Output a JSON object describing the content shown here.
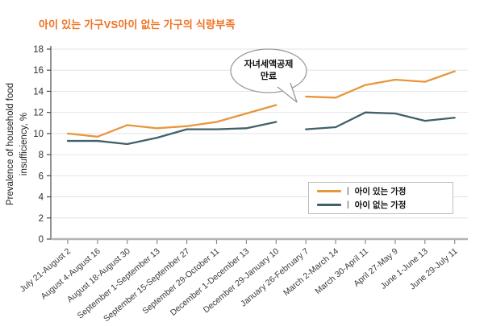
{
  "title": "아이 있는 가구VS아이 없는 가구의 식량부족",
  "title_color": "#EF7222",
  "chart_data": {
    "type": "line",
    "title": "아이 있는 가구VS아이 없는 가구의 식량부족",
    "xlabel": "",
    "ylabel": "Prevalence of household food\ninsufficiency, %",
    "ylim": [
      0,
      18
    ],
    "ytick_step": 2,
    "grid": true,
    "legend_position": "inside lower right",
    "legend_divider": "|",
    "categories": [
      "July 21-August 2",
      "August 4-August 16",
      "August 18-August 30",
      "September 1-September 13",
      "September 15-September 27",
      "September 29-October 11",
      "December 1-December 13",
      "December 29-January 10",
      "January 26-February 7",
      "March 2-March 14",
      "March 30-April 11",
      "April 27-May 9",
      "June 1-June 13",
      "June 29-July 11"
    ],
    "gap_after_index": 7,
    "series": [
      {
        "name": "아이 있는 가정",
        "color": "#E8963C",
        "values": [
          10.0,
          9.7,
          10.8,
          10.5,
          10.7,
          11.1,
          11.9,
          12.7,
          13.5,
          13.4,
          14.6,
          15.1,
          14.9,
          15.9
        ]
      },
      {
        "name": "아이 없는 가정",
        "color": "#41606B",
        "values": [
          9.3,
          9.3,
          9.0,
          9.6,
          10.4,
          10.4,
          10.5,
          11.1,
          10.4,
          10.6,
          12.0,
          11.9,
          11.2,
          11.5
        ]
      }
    ],
    "annotation": {
      "text": "자녀세액공제\n만료"
    },
    "ytick_labels": [
      "0",
      "2",
      "4",
      "6",
      "8",
      "10",
      "12",
      "14",
      "16",
      "18"
    ]
  }
}
